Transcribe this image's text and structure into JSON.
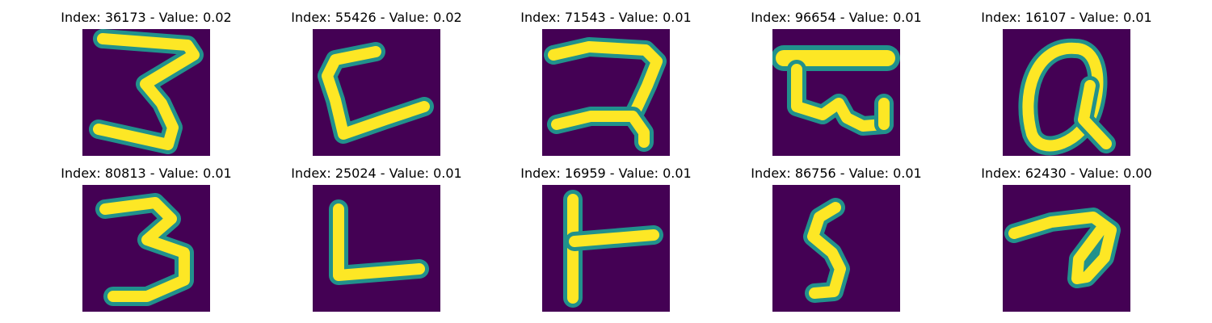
{
  "grid": {
    "items": [
      {
        "title": "Index: 36173 - Value: 0.02",
        "glyph": "digit-3-glyph"
      },
      {
        "title": "Index: 55426 - Value: 0.02",
        "glyph": "letter-c-l-glyph"
      },
      {
        "title": "Index: 71543 - Value: 0.01",
        "glyph": "script-glyph-a"
      },
      {
        "title": "Index: 96654 - Value: 0.01",
        "glyph": "script-glyph-b"
      },
      {
        "title": "Index: 16107 - Value: 0.01",
        "glyph": "letter-q-glyph"
      },
      {
        "title": "Index: 80813 - Value: 0.01",
        "glyph": "digit-3-glyph"
      },
      {
        "title": "Index: 25024 - Value: 0.01",
        "glyph": "letter-l-glyph"
      },
      {
        "title": "Index: 16959 - Value: 0.01",
        "glyph": "letter-t-rotated-glyph"
      },
      {
        "title": "Index: 86756 - Value: 0.01",
        "glyph": "digit-5-glyph"
      },
      {
        "title": "Index: 62430 - Value: 0.00",
        "glyph": "script-glyph-c"
      }
    ]
  },
  "colors": {
    "background": "#440154",
    "stroke": "#fde725",
    "edge": "#21918c"
  }
}
